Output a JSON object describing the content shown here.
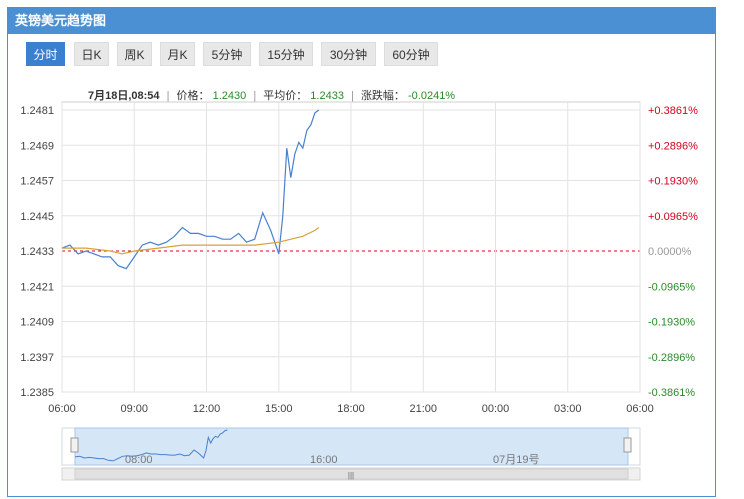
{
  "title": "英镑美元趋势图",
  "tabs": [
    {
      "label": "分时",
      "active": true
    },
    {
      "label": "日K",
      "active": false
    },
    {
      "label": "周K",
      "active": false
    },
    {
      "label": "月K",
      "active": false
    },
    {
      "label": "5分钟",
      "active": false
    },
    {
      "label": "15分钟",
      "active": false
    },
    {
      "label": "30分钟",
      "active": false
    },
    {
      "label": "60分钟",
      "active": false
    }
  ],
  "info": {
    "time": "7月18日,08:54",
    "price_label": "价格：",
    "price": "1.2430",
    "avg_label": "平均价：",
    "avg": "1.2433",
    "change_label": "涨跌幅：",
    "change": "-0.0241%",
    "sep": "|"
  },
  "colors": {
    "accent": "#4a90d2",
    "price_line": "#4a7fcf",
    "avg_line": "#d9a233",
    "up": "#d0021b",
    "down": "#2a8a2a",
    "baseline": "#d0021b"
  },
  "navigator": {
    "labels": [
      "08:00",
      "16:00",
      "07月19号"
    ],
    "handle_glyph": "|||"
  },
  "chart_data": {
    "type": "line",
    "title": "",
    "xlabel": "",
    "ylabel": "",
    "x_ticks": [
      "06:00",
      "09:00",
      "12:00",
      "15:00",
      "18:00",
      "21:00",
      "00:00",
      "03:00",
      "06:00"
    ],
    "y_ticks": [
      "1.2481",
      "1.2469",
      "1.2457",
      "1.2445",
      "1.2433",
      "1.2421",
      "1.2409",
      "1.2397",
      "1.2385"
    ],
    "y_right_ticks": [
      "+0.3861%",
      "+0.2896%",
      "+0.1930%",
      "+0.0965%",
      "0.0000%",
      "-0.0965%",
      "-0.1930%",
      "-0.2896%",
      "-0.3861%"
    ],
    "ylim": [
      1.2385,
      1.2481
    ],
    "baseline": 1.2433,
    "series": [
      {
        "key": "price",
        "x": [
          "06:00",
          "06:20",
          "06:40",
          "07:00",
          "07:20",
          "07:40",
          "08:00",
          "08:20",
          "08:40",
          "09:00",
          "09:20",
          "09:40",
          "10:00",
          "10:20",
          "10:40",
          "11:00",
          "11:20",
          "11:40",
          "12:00",
          "12:20",
          "12:40",
          "13:00",
          "13:20",
          "13:40",
          "14:00",
          "14:20",
          "14:40",
          "15:00",
          "15:10",
          "15:20",
          "15:30",
          "15:40",
          "15:50",
          "16:00",
          "16:10",
          "16:20",
          "16:30",
          "16:40"
        ],
        "values": [
          1.2434,
          1.2435,
          1.2432,
          1.2433,
          1.2432,
          1.2431,
          1.2431,
          1.2428,
          1.2427,
          1.2431,
          1.2435,
          1.2436,
          1.2435,
          1.2436,
          1.2438,
          1.2441,
          1.2439,
          1.2439,
          1.2438,
          1.2438,
          1.2437,
          1.2437,
          1.2439,
          1.2436,
          1.2437,
          1.2446,
          1.244,
          1.2432,
          1.2445,
          1.2468,
          1.2458,
          1.2466,
          1.247,
          1.2468,
          1.2474,
          1.2476,
          1.248,
          1.2481
        ]
      },
      {
        "key": "avg",
        "x": [
          "06:00",
          "07:00",
          "08:00",
          "08:30",
          "09:00",
          "10:00",
          "11:00",
          "12:00",
          "13:00",
          "14:00",
          "15:00",
          "15:30",
          "16:00",
          "16:30",
          "16:40"
        ],
        "values": [
          1.2434,
          1.2434,
          1.2433,
          1.2432,
          1.2433,
          1.2434,
          1.2435,
          1.2435,
          1.2435,
          1.2435,
          1.2436,
          1.2437,
          1.2438,
          1.244,
          1.2441
        ]
      }
    ],
    "grid": true
  }
}
